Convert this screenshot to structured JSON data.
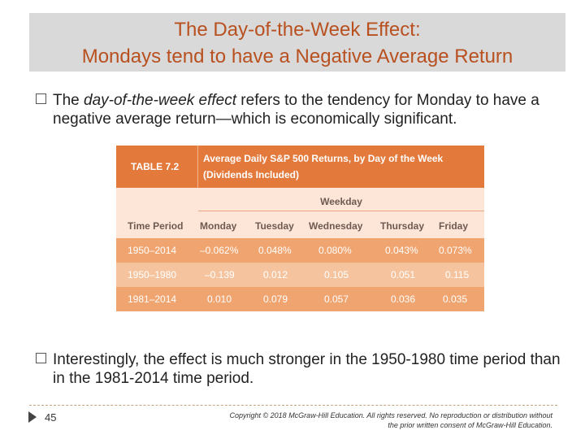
{
  "title": {
    "line1": "The Day-of-the-Week Effect:",
    "line2": "Mondays tend to have a Negative Average Return"
  },
  "bullets": [
    {
      "italic": "day-of-the-week effect",
      "prefix": "The ",
      "suffix": " refers to the tendency for Monday to have a negative average return—which is economically significant."
    },
    {
      "text": "Interestingly, the effect is much stronger in the 1950-1980 time period than in the 1981-2014 time period."
    }
  ],
  "table": {
    "label": "TABLE 7.2",
    "title_line1": "Average Daily S&P 500 Returns, by Day of the Week",
    "title_line2": "(Dividends Included)",
    "group_header": "Weekday",
    "columns": [
      "Time Period",
      "Monday",
      "Tuesday",
      "Wednesday",
      "Thursday",
      "Friday"
    ],
    "rows": [
      [
        "1950–2014",
        "–0.062%",
        "0.048%",
        "0.080%",
        "0.043%",
        "0.073%"
      ],
      [
        "1950–1980",
        "–0.139",
        "0.012",
        "0.105",
        "0.051",
        "0.115"
      ],
      [
        "1981–2014",
        "0.010",
        "0.079",
        "0.057",
        "0.036",
        "0.035"
      ]
    ]
  },
  "footer": {
    "page_number": "45",
    "copyright_line1": "Copyright © 2018 McGraw-Hill Education. All rights reserved. No reproduction or distribution without",
    "copyright_line2": "the prior written consent of McGraw-Hill Education."
  }
}
